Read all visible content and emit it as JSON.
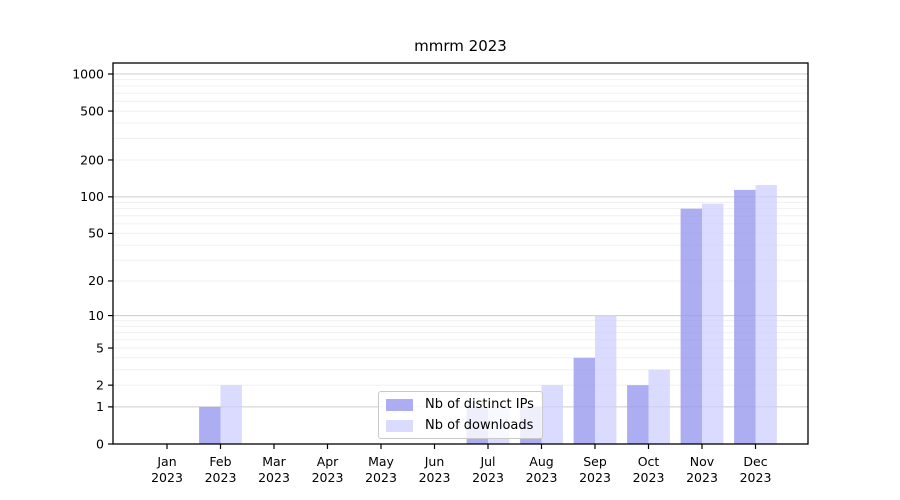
{
  "chart_data": {
    "type": "bar",
    "title": "mmrm 2023",
    "categories": [
      "Jan 2023",
      "Feb 2023",
      "Mar 2023",
      "Apr 2023",
      "May 2023",
      "Jun 2023",
      "Jul 2023",
      "Aug 2023",
      "Sep 2023",
      "Oct 2023",
      "Nov 2023",
      "Dec 2023"
    ],
    "series": [
      {
        "name": "Nb of distinct IPs",
        "slug": "distinct-ips",
        "color": "#9999ee",
        "opacity": 0.8,
        "values": [
          0,
          1,
          0,
          0,
          0,
          0,
          1,
          1,
          4,
          2,
          80,
          114
        ]
      },
      {
        "name": "Nb of downloads",
        "slug": "downloads",
        "color": "#ccccff",
        "opacity": 0.7,
        "values": [
          0,
          2,
          0,
          0,
          0,
          0,
          1,
          2,
          10,
          3,
          88,
          125
        ]
      }
    ],
    "y_ticks": [
      0,
      1,
      2,
      5,
      10,
      20,
      50,
      100,
      200,
      500,
      1000
    ],
    "ylim": [
      0,
      1000
    ],
    "y_scale": "symlog ln(1+x)",
    "grid": "horizontal major (1,10,100,1000) + minor (2-9 per decade)",
    "legend_position": "inside lower-center",
    "colors": {
      "grid_major": "#cccccc",
      "grid_minor": "#f0f0f0",
      "spine": "#000000",
      "tick": "#000000",
      "legend_border": "#c9c9c9"
    }
  }
}
